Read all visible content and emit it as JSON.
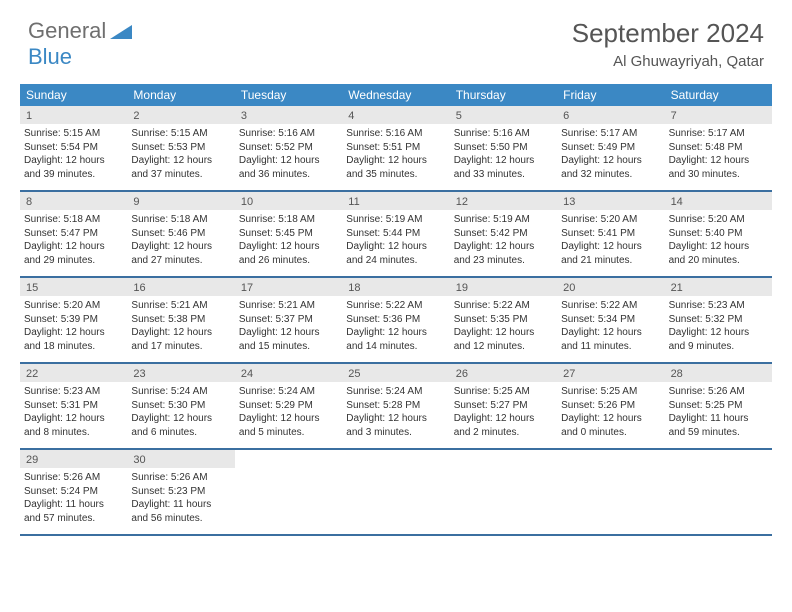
{
  "logo": {
    "text1": "General",
    "text2": "Blue"
  },
  "title": "September 2024",
  "location": "Al Ghuwayriyah, Qatar",
  "colors": {
    "header_bg": "#3b88c4",
    "rule": "#3b6fa0",
    "daynum_bg": "#e8e8e8"
  },
  "dow": [
    "Sunday",
    "Monday",
    "Tuesday",
    "Wednesday",
    "Thursday",
    "Friday",
    "Saturday"
  ],
  "weeks": [
    [
      {
        "n": "1",
        "sr": "Sunrise: 5:15 AM",
        "ss": "Sunset: 5:54 PM",
        "d1": "Daylight: 12 hours",
        "d2": "and 39 minutes."
      },
      {
        "n": "2",
        "sr": "Sunrise: 5:15 AM",
        "ss": "Sunset: 5:53 PM",
        "d1": "Daylight: 12 hours",
        "d2": "and 37 minutes."
      },
      {
        "n": "3",
        "sr": "Sunrise: 5:16 AM",
        "ss": "Sunset: 5:52 PM",
        "d1": "Daylight: 12 hours",
        "d2": "and 36 minutes."
      },
      {
        "n": "4",
        "sr": "Sunrise: 5:16 AM",
        "ss": "Sunset: 5:51 PM",
        "d1": "Daylight: 12 hours",
        "d2": "and 35 minutes."
      },
      {
        "n": "5",
        "sr": "Sunrise: 5:16 AM",
        "ss": "Sunset: 5:50 PM",
        "d1": "Daylight: 12 hours",
        "d2": "and 33 minutes."
      },
      {
        "n": "6",
        "sr": "Sunrise: 5:17 AM",
        "ss": "Sunset: 5:49 PM",
        "d1": "Daylight: 12 hours",
        "d2": "and 32 minutes."
      },
      {
        "n": "7",
        "sr": "Sunrise: 5:17 AM",
        "ss": "Sunset: 5:48 PM",
        "d1": "Daylight: 12 hours",
        "d2": "and 30 minutes."
      }
    ],
    [
      {
        "n": "8",
        "sr": "Sunrise: 5:18 AM",
        "ss": "Sunset: 5:47 PM",
        "d1": "Daylight: 12 hours",
        "d2": "and 29 minutes."
      },
      {
        "n": "9",
        "sr": "Sunrise: 5:18 AM",
        "ss": "Sunset: 5:46 PM",
        "d1": "Daylight: 12 hours",
        "d2": "and 27 minutes."
      },
      {
        "n": "10",
        "sr": "Sunrise: 5:18 AM",
        "ss": "Sunset: 5:45 PM",
        "d1": "Daylight: 12 hours",
        "d2": "and 26 minutes."
      },
      {
        "n": "11",
        "sr": "Sunrise: 5:19 AM",
        "ss": "Sunset: 5:44 PM",
        "d1": "Daylight: 12 hours",
        "d2": "and 24 minutes."
      },
      {
        "n": "12",
        "sr": "Sunrise: 5:19 AM",
        "ss": "Sunset: 5:42 PM",
        "d1": "Daylight: 12 hours",
        "d2": "and 23 minutes."
      },
      {
        "n": "13",
        "sr": "Sunrise: 5:20 AM",
        "ss": "Sunset: 5:41 PM",
        "d1": "Daylight: 12 hours",
        "d2": "and 21 minutes."
      },
      {
        "n": "14",
        "sr": "Sunrise: 5:20 AM",
        "ss": "Sunset: 5:40 PM",
        "d1": "Daylight: 12 hours",
        "d2": "and 20 minutes."
      }
    ],
    [
      {
        "n": "15",
        "sr": "Sunrise: 5:20 AM",
        "ss": "Sunset: 5:39 PM",
        "d1": "Daylight: 12 hours",
        "d2": "and 18 minutes."
      },
      {
        "n": "16",
        "sr": "Sunrise: 5:21 AM",
        "ss": "Sunset: 5:38 PM",
        "d1": "Daylight: 12 hours",
        "d2": "and 17 minutes."
      },
      {
        "n": "17",
        "sr": "Sunrise: 5:21 AM",
        "ss": "Sunset: 5:37 PM",
        "d1": "Daylight: 12 hours",
        "d2": "and 15 minutes."
      },
      {
        "n": "18",
        "sr": "Sunrise: 5:22 AM",
        "ss": "Sunset: 5:36 PM",
        "d1": "Daylight: 12 hours",
        "d2": "and 14 minutes."
      },
      {
        "n": "19",
        "sr": "Sunrise: 5:22 AM",
        "ss": "Sunset: 5:35 PM",
        "d1": "Daylight: 12 hours",
        "d2": "and 12 minutes."
      },
      {
        "n": "20",
        "sr": "Sunrise: 5:22 AM",
        "ss": "Sunset: 5:34 PM",
        "d1": "Daylight: 12 hours",
        "d2": "and 11 minutes."
      },
      {
        "n": "21",
        "sr": "Sunrise: 5:23 AM",
        "ss": "Sunset: 5:32 PM",
        "d1": "Daylight: 12 hours",
        "d2": "and 9 minutes."
      }
    ],
    [
      {
        "n": "22",
        "sr": "Sunrise: 5:23 AM",
        "ss": "Sunset: 5:31 PM",
        "d1": "Daylight: 12 hours",
        "d2": "and 8 minutes."
      },
      {
        "n": "23",
        "sr": "Sunrise: 5:24 AM",
        "ss": "Sunset: 5:30 PM",
        "d1": "Daylight: 12 hours",
        "d2": "and 6 minutes."
      },
      {
        "n": "24",
        "sr": "Sunrise: 5:24 AM",
        "ss": "Sunset: 5:29 PM",
        "d1": "Daylight: 12 hours",
        "d2": "and 5 minutes."
      },
      {
        "n": "25",
        "sr": "Sunrise: 5:24 AM",
        "ss": "Sunset: 5:28 PM",
        "d1": "Daylight: 12 hours",
        "d2": "and 3 minutes."
      },
      {
        "n": "26",
        "sr": "Sunrise: 5:25 AM",
        "ss": "Sunset: 5:27 PM",
        "d1": "Daylight: 12 hours",
        "d2": "and 2 minutes."
      },
      {
        "n": "27",
        "sr": "Sunrise: 5:25 AM",
        "ss": "Sunset: 5:26 PM",
        "d1": "Daylight: 12 hours",
        "d2": "and 0 minutes."
      },
      {
        "n": "28",
        "sr": "Sunrise: 5:26 AM",
        "ss": "Sunset: 5:25 PM",
        "d1": "Daylight: 11 hours",
        "d2": "and 59 minutes."
      }
    ],
    [
      {
        "n": "29",
        "sr": "Sunrise: 5:26 AM",
        "ss": "Sunset: 5:24 PM",
        "d1": "Daylight: 11 hours",
        "d2": "and 57 minutes."
      },
      {
        "n": "30",
        "sr": "Sunrise: 5:26 AM",
        "ss": "Sunset: 5:23 PM",
        "d1": "Daylight: 11 hours",
        "d2": "and 56 minutes."
      },
      {
        "empty": true
      },
      {
        "empty": true
      },
      {
        "empty": true
      },
      {
        "empty": true
      },
      {
        "empty": true
      }
    ]
  ]
}
